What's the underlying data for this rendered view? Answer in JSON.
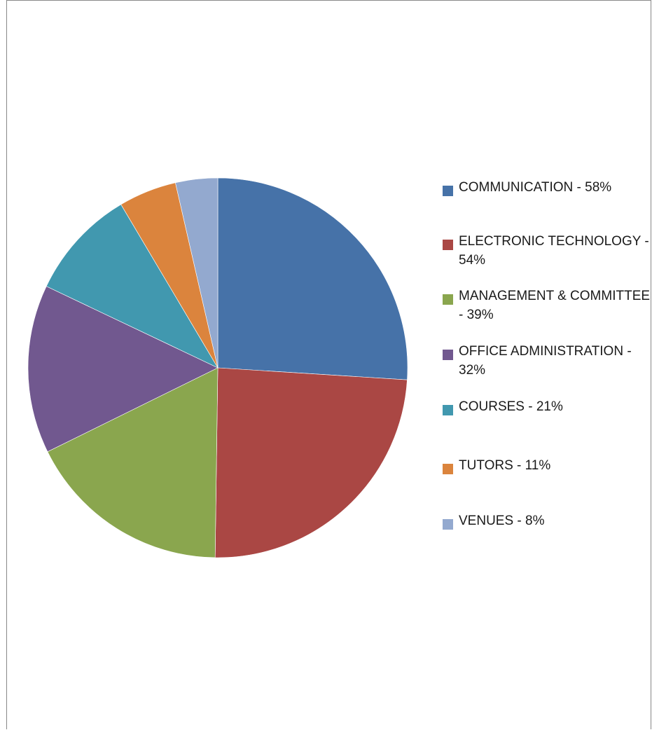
{
  "chart_data": {
    "type": "pie",
    "categories": [
      "COMMUNICATION - 58%",
      "ELECTRONIC TECHNOLOGY - 54%",
      "MANAGEMENT & COMMITTEE - 39%",
      "OFFICE ADMINISTRATION - 32%",
      "COURSES - 21%",
      "TUTORS - 11%",
      "VENUES - 8%"
    ],
    "values": [
      58,
      54,
      39,
      32,
      21,
      11,
      8
    ],
    "colors": [
      "#4672A8",
      "#AA4744",
      "#8AA64E",
      "#71588F",
      "#4198AF",
      "#DB843D",
      "#93A9CF"
    ],
    "legend_position": "right",
    "title": "",
    "start_angle": "12 o'clock",
    "direction": "clockwise"
  }
}
